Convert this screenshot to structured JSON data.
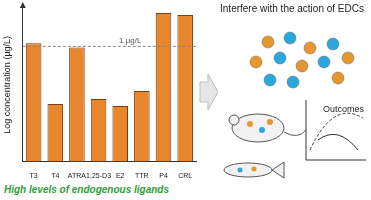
{
  "chart_data": {
    "type": "bar",
    "y_label": "Log concentration (µg/L)",
    "categories": [
      "T3",
      "T4",
      "ATRA",
      "1,25-D3",
      "E2",
      "TTR",
      "P4",
      "CRL"
    ],
    "values": [
      0.08,
      -1.5,
      -0.03,
      -1.37,
      -1.55,
      -1.16,
      0.87,
      0.82
    ],
    "color": "#e8862e",
    "ylim": [
      -3,
      1
    ],
    "tick_labels": "x",
    "grid": false,
    "reference_line": {
      "value": 0,
      "label": "1 µg/L"
    }
  },
  "caption": "High levels of endogenous ligands",
  "diagram": {
    "title": "Interfere with the action of EDCs",
    "outcome_label": "Outcomes",
    "ligand_colors": [
      "#e8962e",
      "#2aa7dc"
    ]
  }
}
